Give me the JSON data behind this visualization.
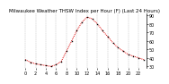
{
  "title": "Milwaukee Weather THSW Index per Hour (F) (Last 24 Hours)",
  "hours": [
    0,
    1,
    2,
    3,
    4,
    5,
    6,
    7,
    8,
    9,
    10,
    11,
    12,
    13,
    14,
    15,
    16,
    17,
    18,
    19,
    20,
    21,
    22,
    23
  ],
  "values": [
    38,
    35,
    33,
    32,
    31,
    30,
    32,
    36,
    48,
    60,
    72,
    82,
    88,
    86,
    80,
    72,
    65,
    58,
    52,
    48,
    44,
    42,
    40,
    38
  ],
  "line_color": "#dd0000",
  "marker_color": "#000000",
  "bg_color": "#ffffff",
  "grid_color": "#aaaaaa",
  "ylim": [
    28,
    92
  ],
  "yticks": [
    30,
    40,
    50,
    60,
    70,
    80,
    90
  ],
  "ytick_labels": [
    "30",
    "40",
    "50",
    "60",
    "70",
    "80",
    "90"
  ],
  "title_fontsize": 4.0,
  "tick_fontsize": 3.5,
  "xlabel_hours": [
    0,
    2,
    4,
    6,
    8,
    10,
    12,
    14,
    16,
    18,
    20,
    22
  ],
  "xlabel_labels": [
    "0",
    "2",
    "4",
    "6",
    "8",
    "10",
    "12",
    "14",
    "16",
    "18",
    "20",
    "22"
  ],
  "grid_hours": [
    0,
    2,
    4,
    6,
    8,
    10,
    12,
    14,
    16,
    18,
    20,
    22
  ]
}
